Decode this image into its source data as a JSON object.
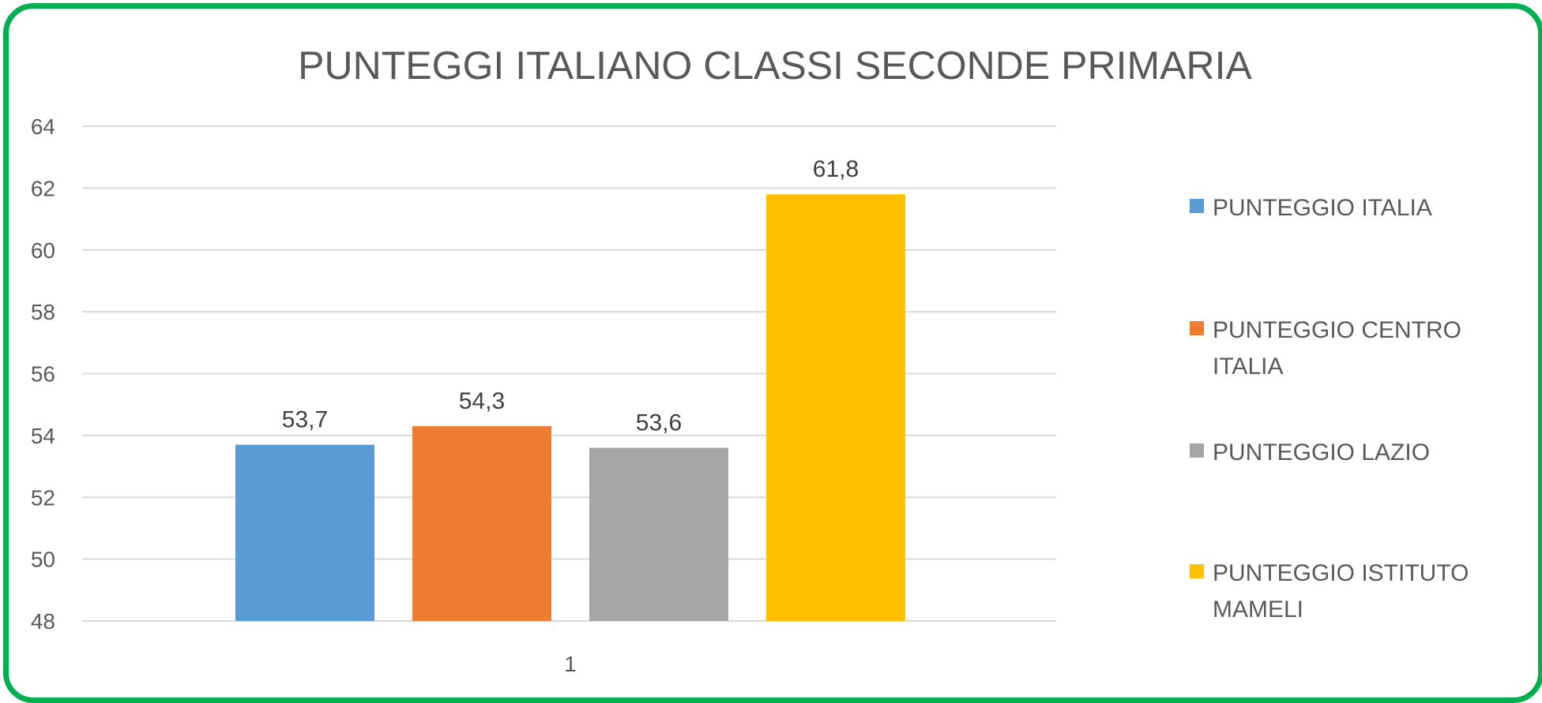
{
  "chart_data": {
    "type": "bar",
    "title": "PUNTEGGI ITALIANO CLASSI SECONDE PRIMARIA",
    "categories": [
      "1"
    ],
    "series": [
      {
        "name": "PUNTEGGIO ITALIA",
        "values": [
          53.7
        ],
        "label": "53,7",
        "color": "#5b9bd5"
      },
      {
        "name": "PUNTEGGIO CENTRO ITALIA",
        "values": [
          54.3
        ],
        "label": "54,3",
        "color": "#ed7d31"
      },
      {
        "name": "PUNTEGGIO LAZIO",
        "values": [
          53.6
        ],
        "label": "53,6",
        "color": "#a5a5a5"
      },
      {
        "name": "PUNTEGGIO ISTITUTO MAMELI",
        "values": [
          61.8
        ],
        "label": "61,8",
        "color": "#ffc000"
      }
    ],
    "yticks": [
      "48",
      "50",
      "52",
      "54",
      "56",
      "58",
      "60",
      "62",
      "64"
    ],
    "ylim": [
      48,
      64
    ],
    "grid": true,
    "legend_position": "right",
    "frame_color": "#00b050"
  }
}
